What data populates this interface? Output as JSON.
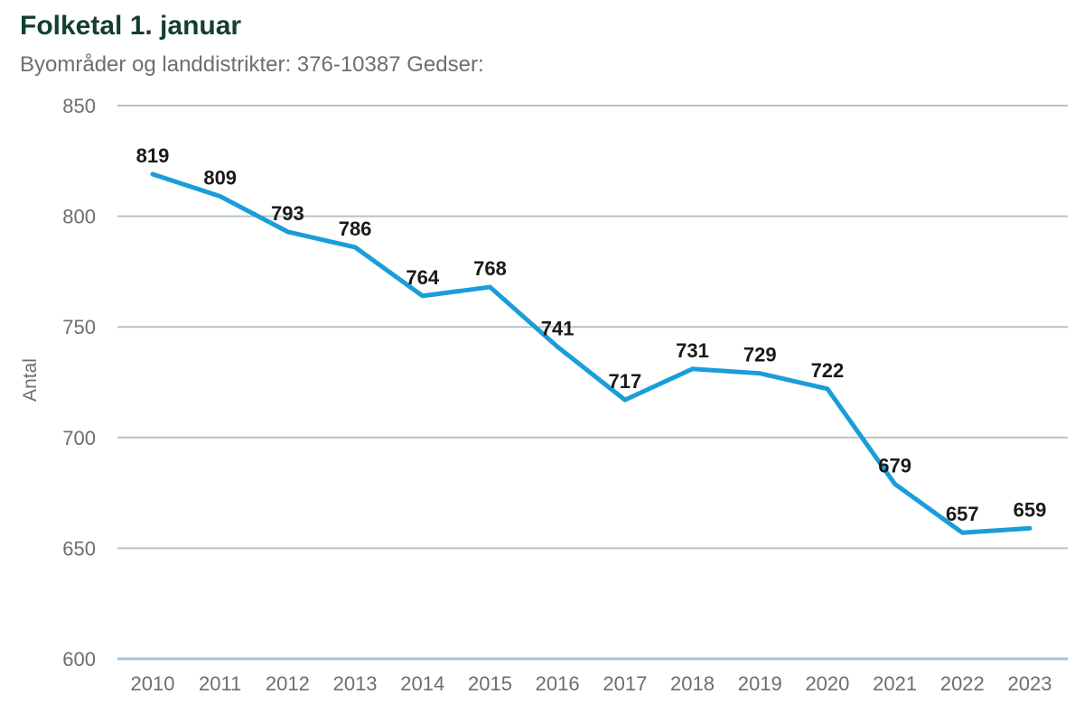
{
  "header": {
    "title": "Folketal 1. januar",
    "subtitle": "Byområder og landdistrikter: 376-10387 Gedser:"
  },
  "chart_data": {
    "type": "line",
    "title": "Folketal 1. januar",
    "subtitle": "Byområder og landdistrikter: 376-10387 Gedser:",
    "x": [
      2010,
      2011,
      2012,
      2013,
      2014,
      2015,
      2016,
      2017,
      2018,
      2019,
      2020,
      2021,
      2022,
      2023
    ],
    "values": [
      819,
      809,
      793,
      786,
      764,
      768,
      741,
      717,
      731,
      729,
      722,
      679,
      657,
      659
    ],
    "xlabel": "",
    "ylabel": "Antal",
    "ylim": [
      600,
      850
    ],
    "yticks": [
      600,
      650,
      700,
      750,
      800,
      850
    ],
    "grid": true,
    "legend": "none",
    "data_labels": true,
    "colors": {
      "line": "#1a9dd9",
      "grid": "#b6c3bd",
      "axis_line": "#a8c2d4",
      "tick_text": "#6e6e6e",
      "ylabel_text": "#6e6e6e",
      "data_label": "#1a1a1a",
      "title": "#123e33",
      "subtitle": "#6e6e6e"
    }
  }
}
